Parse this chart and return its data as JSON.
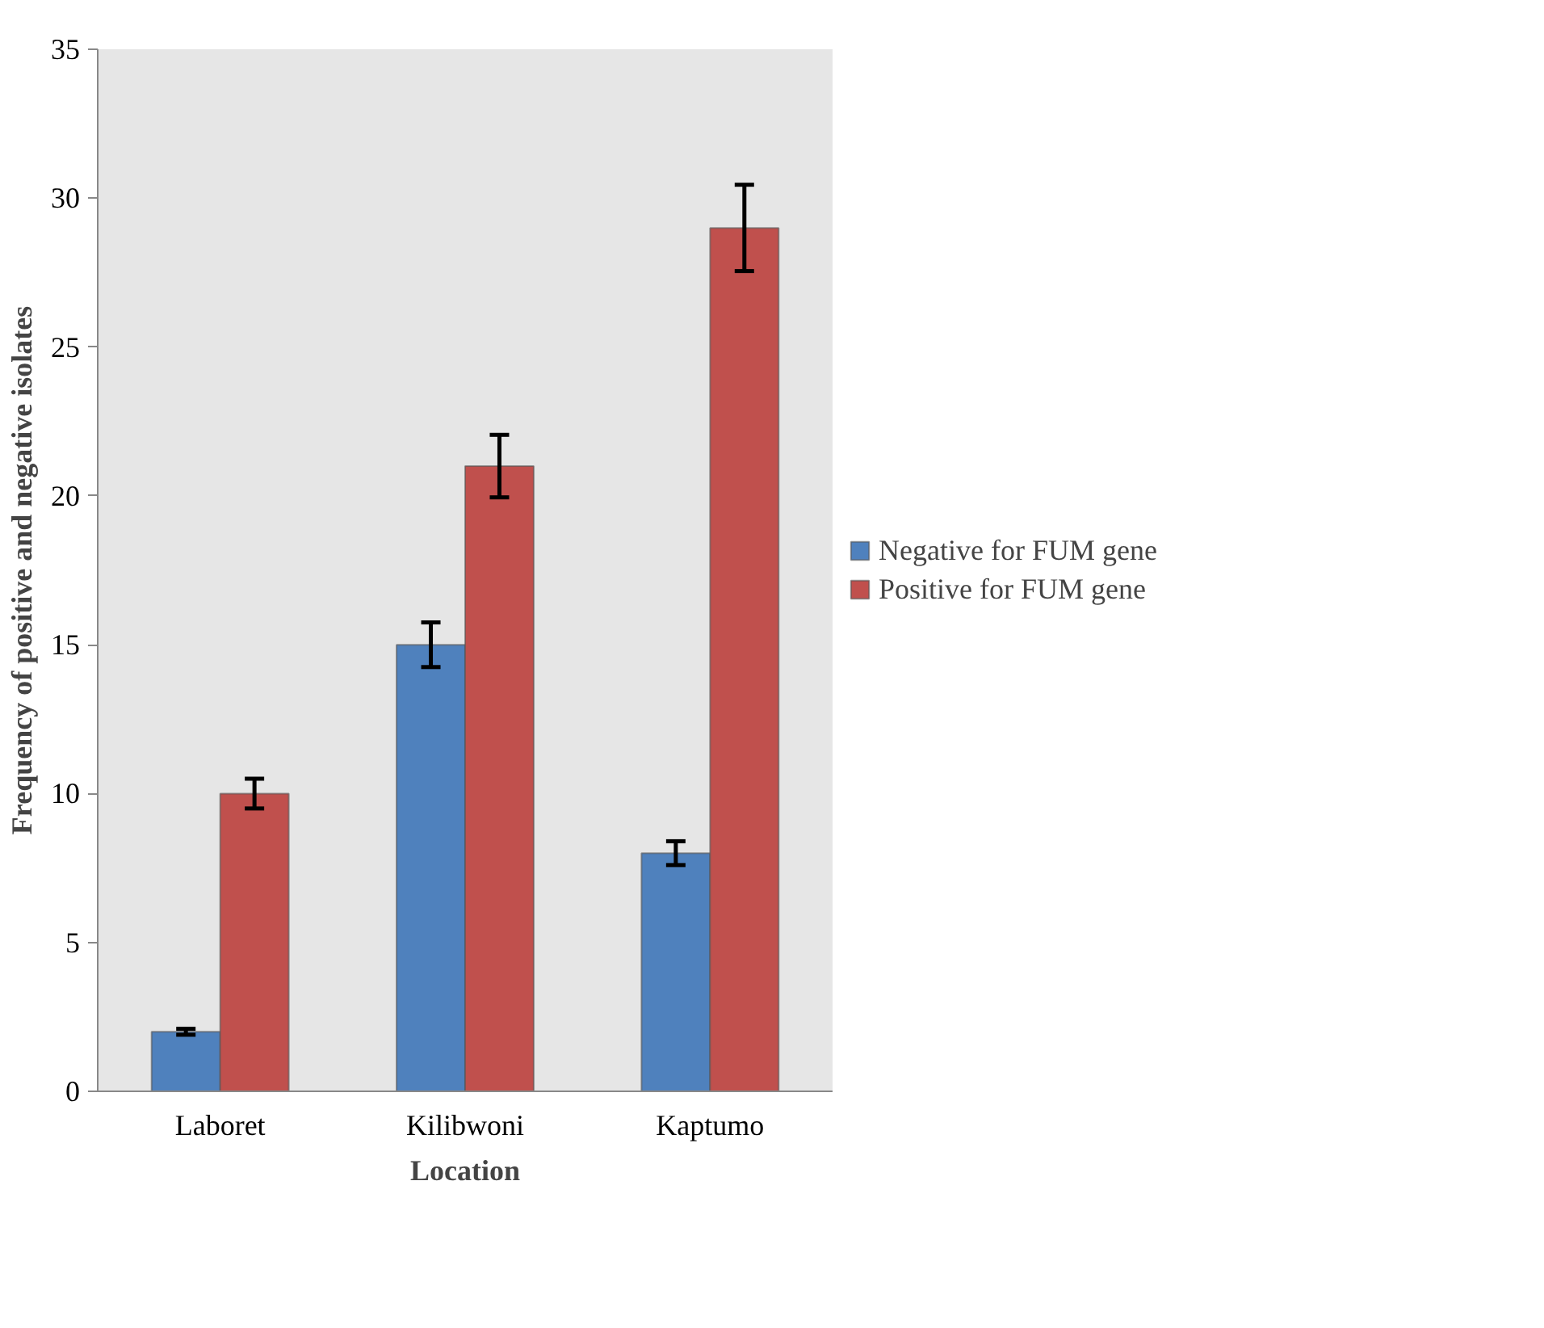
{
  "chart_data": {
    "type": "bar",
    "xlabel": "Location",
    "ylabel": "Frequency of positive and negative isolates",
    "categories": [
      "Laboret",
      "Kilibwoni",
      "Kaptumo"
    ],
    "series": [
      {
        "name": "Negative for FUM gene",
        "color": "#4f81bd",
        "values": [
          2,
          15,
          8
        ],
        "errors": [
          0.1,
          0.75,
          0.4
        ]
      },
      {
        "name": "Positive for FUM gene",
        "color": "#c0504d",
        "values": [
          10,
          21,
          29
        ],
        "errors": [
          0.5,
          1.05,
          1.45
        ]
      }
    ],
    "ylim": [
      0,
      35
    ],
    "yticks": [
      0,
      5,
      10,
      15,
      20,
      25,
      30,
      35
    ],
    "legend": "right"
  }
}
